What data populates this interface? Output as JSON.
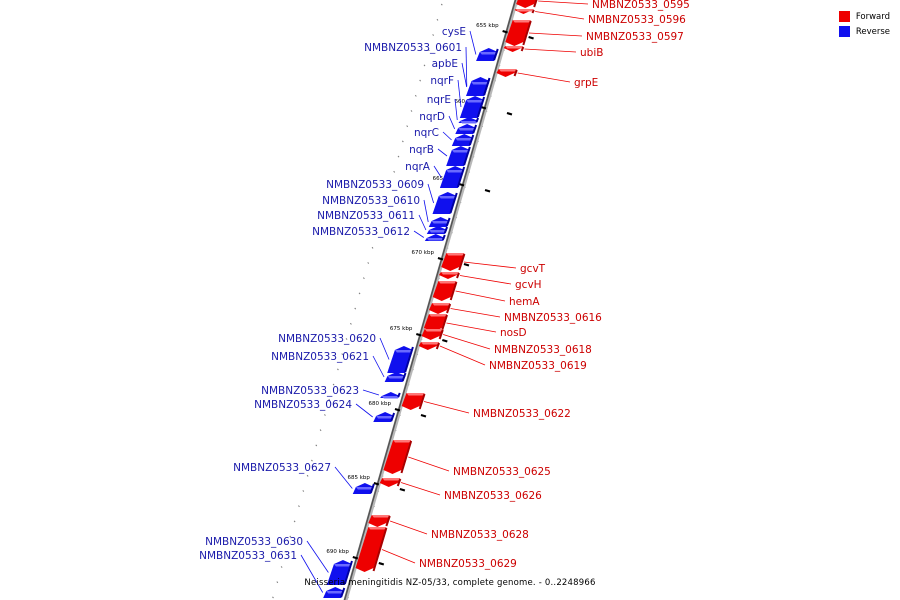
{
  "legend": {
    "forward_label": "Forward",
    "reverse_label": "Reverse",
    "forward_color": "#ee0000",
    "reverse_color": "#1010ee"
  },
  "caption": "Neisseria meningitidis NZ-05/33, complete genome. - 0..2248966",
  "ticks": [
    {
      "kbp": 655,
      "label": "655 kbp"
    },
    {
      "kbp": 660,
      "label": "660 kbp"
    },
    {
      "kbp": 665,
      "label": "665 kbp"
    },
    {
      "kbp": 670,
      "label": "670 kbp"
    },
    {
      "kbp": 675,
      "label": "675 kbp"
    },
    {
      "kbp": 680,
      "label": "680 kbp"
    },
    {
      "kbp": 685,
      "label": "685 kbp"
    },
    {
      "kbp": 690,
      "label": "690 kbp"
    }
  ],
  "genes": [
    {
      "name": "NMBNZ0533_0595",
      "strand": "forward"
    },
    {
      "name": "NMBNZ0533_0596",
      "strand": "forward"
    },
    {
      "name": "NMBNZ0533_0597",
      "strand": "forward"
    },
    {
      "name": "ubiB",
      "strand": "forward"
    },
    {
      "name": "grpE",
      "strand": "forward"
    },
    {
      "name": "cysE",
      "strand": "reverse"
    },
    {
      "name": "NMBNZ0533_0601",
      "strand": "reverse"
    },
    {
      "name": "apbE",
      "strand": "reverse"
    },
    {
      "name": "nqrF",
      "strand": "reverse"
    },
    {
      "name": "nqrE",
      "strand": "reverse"
    },
    {
      "name": "nqrD",
      "strand": "reverse"
    },
    {
      "name": "nqrC",
      "strand": "reverse"
    },
    {
      "name": "nqrB",
      "strand": "reverse"
    },
    {
      "name": "nqrA",
      "strand": "reverse"
    },
    {
      "name": "NMBNZ0533_0609",
      "strand": "reverse"
    },
    {
      "name": "NMBNZ0533_0610",
      "strand": "reverse"
    },
    {
      "name": "NMBNZ0533_0611",
      "strand": "reverse"
    },
    {
      "name": "NMBNZ0533_0612",
      "strand": "reverse"
    },
    {
      "name": "gcvT",
      "strand": "forward"
    },
    {
      "name": "gcvH",
      "strand": "forward"
    },
    {
      "name": "hemA",
      "strand": "forward"
    },
    {
      "name": "NMBNZ0533_0616",
      "strand": "forward"
    },
    {
      "name": "nosD",
      "strand": "forward"
    },
    {
      "name": "NMBNZ0533_0618",
      "strand": "forward"
    },
    {
      "name": "NMBNZ0533_0619",
      "strand": "forward"
    },
    {
      "name": "NMBNZ0533_0620",
      "strand": "reverse"
    },
    {
      "name": "NMBNZ0533_0621",
      "strand": "reverse"
    },
    {
      "name": "NMBNZ0533_0622",
      "strand": "forward"
    },
    {
      "name": "NMBNZ0533_0623",
      "strand": "reverse"
    },
    {
      "name": "NMBNZ0533_0624",
      "strand": "reverse"
    },
    {
      "name": "NMBNZ0533_0625",
      "strand": "forward"
    },
    {
      "name": "NMBNZ0533_0626",
      "strand": "forward"
    },
    {
      "name": "NMBNZ0533_0627",
      "strand": "reverse"
    },
    {
      "name": "NMBNZ0533_0628",
      "strand": "forward"
    },
    {
      "name": "NMBNZ0533_0629",
      "strand": "forward"
    },
    {
      "name": "NMBNZ0533_0630",
      "strand": "reverse"
    },
    {
      "name": "NMBNZ0533_0631",
      "strand": "reverse"
    }
  ]
}
